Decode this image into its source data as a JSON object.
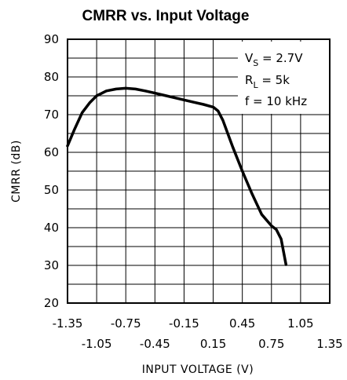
{
  "chart_data": {
    "type": "line",
    "title": "CMRR vs. Input Voltage",
    "xlabel": "INPUT VOLTAGE (V)",
    "ylabel": "CMRR (dB)",
    "xlim": [
      -1.35,
      1.35
    ],
    "ylim": [
      20,
      90
    ],
    "x_ticks_upper": [
      "-1.35",
      "-0.75",
      "-0.15",
      "0.45",
      "1.05"
    ],
    "x_ticks_lower": [
      "-1.05",
      "-0.45",
      "0.15",
      "0.75",
      "1.35"
    ],
    "y_ticks": [
      "20",
      "30",
      "40",
      "50",
      "60",
      "70",
      "80",
      "90"
    ],
    "grid": true,
    "annotations": [
      {
        "main": "V",
        "sub": "S",
        "rest": " = 2.7V"
      },
      {
        "main": "R",
        "sub": "L",
        "rest": " = 5k"
      },
      {
        "main": "f = 10 kHz",
        "sub": "",
        "rest": ""
      }
    ],
    "series": [
      {
        "x": [
          -1.35,
          -1.28,
          -1.2,
          -1.12,
          -1.05,
          -0.95,
          -0.85,
          -0.75,
          -0.65,
          -0.55,
          -0.45,
          -0.35,
          -0.25,
          -0.15,
          -0.05,
          0.05,
          0.15,
          0.2,
          0.25,
          0.3,
          0.35,
          0.45,
          0.55,
          0.65,
          0.75,
          0.8,
          0.85,
          0.9
        ],
        "y": [
          61.7,
          66.0,
          70.5,
          73.2,
          75.0,
          76.3,
          76.8,
          77.0,
          76.8,
          76.3,
          75.7,
          75.1,
          74.5,
          73.9,
          73.3,
          72.7,
          72.0,
          71.0,
          68.5,
          65.0,
          61.5,
          55.0,
          49.0,
          43.5,
          40.5,
          39.5,
          37.0,
          30.2
        ]
      }
    ]
  }
}
